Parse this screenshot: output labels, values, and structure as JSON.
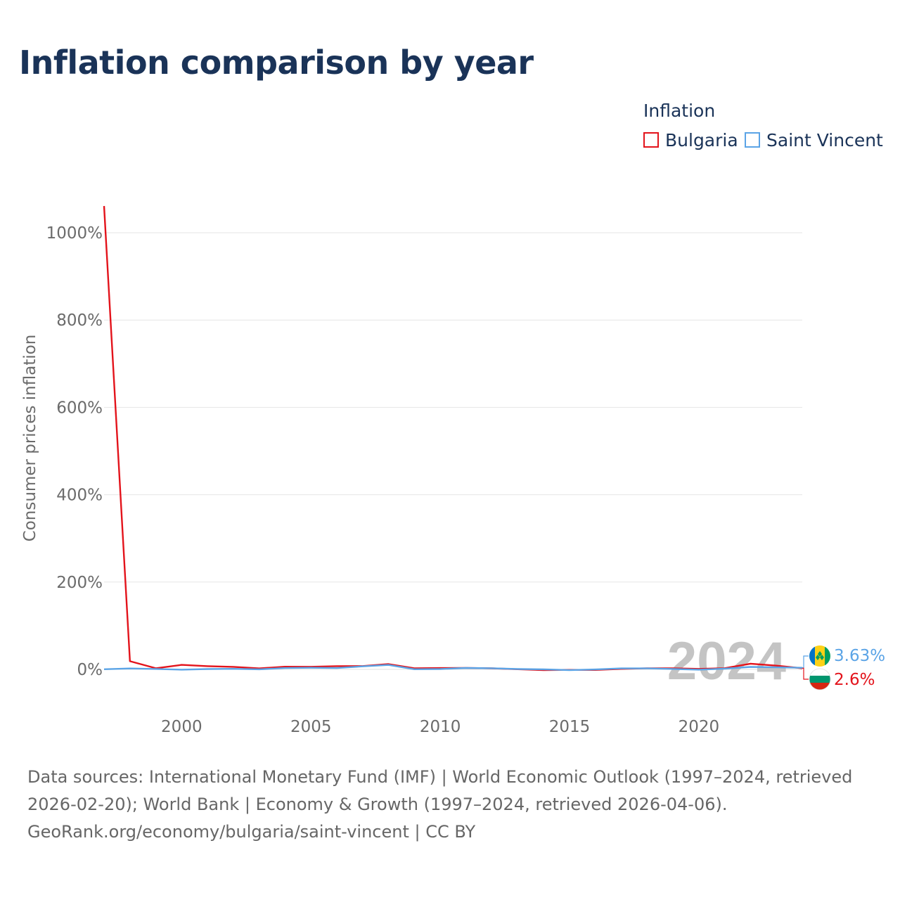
{
  "title": "Inflation comparison by year",
  "legend": {
    "title": "Inflation",
    "items": [
      {
        "label": "Bulgaria",
        "color": "#e3131b"
      },
      {
        "label": "Saint Vincent",
        "color": "#5ba4e6"
      }
    ]
  },
  "chart_data": {
    "type": "line",
    "title": "Inflation comparison by year",
    "xlabel": "",
    "ylabel": "Consumer prices inflation",
    "xlim": [
      1997,
      2024
    ],
    "ylim": [
      -90,
      1100
    ],
    "y_ticks": [
      0,
      200,
      400,
      600,
      800,
      1000
    ],
    "y_tick_labels": [
      "0%",
      "200%",
      "400%",
      "600%",
      "800%",
      "1000%"
    ],
    "x_ticks": [
      2000,
      2005,
      2010,
      2015,
      2020
    ],
    "x_tick_labels": [
      "2000",
      "2005",
      "2010",
      "2015",
      "2020"
    ],
    "grid": true,
    "legend_position": "top-right",
    "watermark_year": "2024",
    "x": [
      1997,
      1998,
      1999,
      2000,
      2001,
      2002,
      2003,
      2004,
      2005,
      2006,
      2007,
      2008,
      2009,
      2010,
      2011,
      2012,
      2013,
      2014,
      2015,
      2016,
      2017,
      2018,
      2019,
      2020,
      2021,
      2022,
      2023,
      2024
    ],
    "series": [
      {
        "name": "Bulgaria",
        "color": "#e3131b",
        "values": [
          1061.2,
          18.7,
          2.6,
          10.3,
          7.4,
          5.8,
          2.3,
          6.1,
          6.0,
          7.4,
          7.6,
          12.0,
          2.5,
          3.0,
          3.4,
          2.4,
          0.4,
          -1.6,
          -1.1,
          -1.3,
          1.2,
          2.6,
          2.5,
          1.2,
          2.8,
          13.0,
          8.6,
          2.6
        ],
        "end_label": "2.6%"
      },
      {
        "name": "Saint Vincent",
        "color": "#5ba4e6",
        "values": [
          0.4,
          2.1,
          1.0,
          -0.6,
          0.8,
          1.3,
          0.2,
          3.0,
          3.7,
          3.0,
          7.0,
          10.1,
          0.4,
          0.8,
          3.2,
          2.6,
          0.8,
          0.2,
          -1.7,
          -0.2,
          2.2,
          2.3,
          0.9,
          -0.6,
          1.6,
          5.7,
          4.6,
          3.63
        ],
        "end_label": "3.63%"
      }
    ]
  },
  "sources": {
    "line1": "Data sources: International Monetary Fund (IMF) | World Economic Outlook (1997–2024, retrieved 2026-02-20); World Bank | Economy & Growth (1997–2024, retrieved 2026-04-06).",
    "line2": "GeoRank.org/economy/bulgaria/saint-vincent | CC BY"
  }
}
